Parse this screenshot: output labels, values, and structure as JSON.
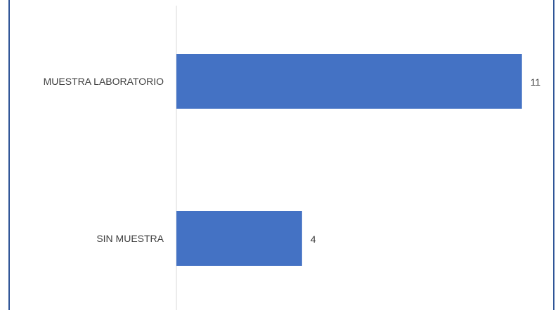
{
  "chart_data": {
    "type": "bar",
    "orientation": "horizontal",
    "categories": [
      "MUESTRA LABORATORIO",
      "SIN MUESTRA"
    ],
    "values": [
      11,
      4
    ],
    "data_labels": [
      "11",
      "4"
    ],
    "colors": {
      "bar": "#4472c4",
      "border": "#2f5597",
      "axis": "#d9d9d9",
      "text": "#404040"
    },
    "xlim": [
      0,
      12
    ],
    "grid": false,
    "legend": "none"
  }
}
